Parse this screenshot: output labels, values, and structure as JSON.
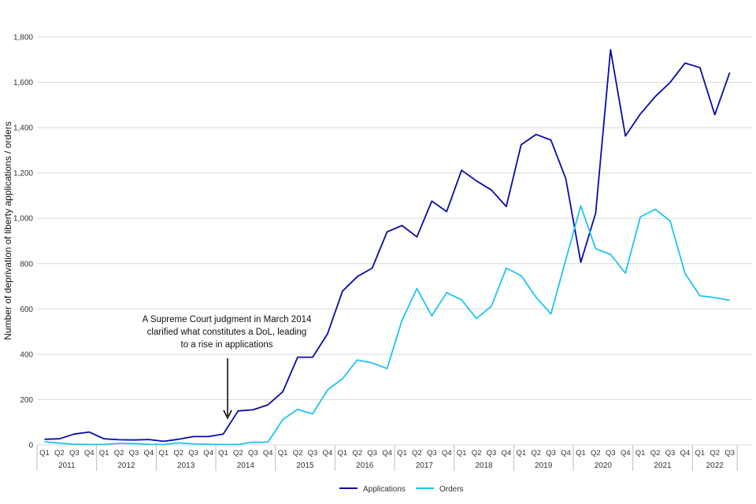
{
  "chart_data": {
    "type": "line",
    "ylabel": "Number of deprivation of liberty applications / orders",
    "ylim": [
      0,
      1800
    ],
    "yticks": [
      "0",
      "200",
      "400",
      "600",
      "800",
      "1,000",
      "1,200",
      "1,400",
      "1,600",
      "1,800"
    ],
    "ytick_values": [
      0,
      200,
      400,
      600,
      800,
      1000,
      1200,
      1400,
      1600,
      1800
    ],
    "quarters": [
      "Q1",
      "Q2",
      "Q3",
      "Q4"
    ],
    "years": [
      {
        "label": "2011",
        "quarters": [
          "Q1",
          "Q2",
          "Q3",
          "Q4"
        ]
      },
      {
        "label": "2012",
        "quarters": [
          "Q1",
          "Q2",
          "Q3",
          "Q4"
        ]
      },
      {
        "label": "2013",
        "quarters": [
          "Q1",
          "Q2",
          "Q3",
          "Q4"
        ]
      },
      {
        "label": "2014",
        "quarters": [
          "Q1",
          "Q2",
          "Q3",
          "Q4"
        ]
      },
      {
        "label": "2015",
        "quarters": [
          "Q1",
          "Q2",
          "Q3",
          "Q4"
        ]
      },
      {
        "label": "2016",
        "quarters": [
          "Q1",
          "Q2",
          "Q3",
          "Q4"
        ]
      },
      {
        "label": "2017",
        "quarters": [
          "Q1",
          "Q2",
          "Q3",
          "Q4"
        ]
      },
      {
        "label": "2018",
        "quarters": [
          "Q1",
          "Q2",
          "Q3",
          "Q4"
        ]
      },
      {
        "label": "2019",
        "quarters": [
          "Q1",
          "Q2",
          "Q3",
          "Q4"
        ]
      },
      {
        "label": "2020",
        "quarters": [
          "Q1",
          "Q2",
          "Q3",
          "Q4"
        ]
      },
      {
        "label": "2021",
        "quarters": [
          "Q1",
          "Q2",
          "Q3",
          "Q4"
        ]
      },
      {
        "label": "2022",
        "quarters": [
          "Q1",
          "Q2",
          "Q3"
        ]
      }
    ],
    "series": [
      {
        "name": "Applications",
        "color": "#0a0aa8",
        "values": [
          25,
          27,
          48,
          57,
          27,
          23,
          22,
          24,
          16,
          25,
          37,
          37,
          48,
          150,
          155,
          177,
          235,
          387,
          387,
          490,
          678,
          743,
          780,
          940,
          968,
          918,
          1076,
          1030,
          1212,
          1165,
          1125,
          1052,
          1325,
          1370,
          1345,
          1175,
          806,
          1023,
          1744,
          1363,
          1460,
          1537,
          1600,
          1685,
          1665,
          1457,
          1643
        ]
      },
      {
        "name": "Orders",
        "color": "#1ec4f0",
        "values": [
          14,
          8,
          3,
          2,
          2,
          7,
          6,
          3,
          2,
          9,
          5,
          3,
          2,
          2,
          12,
          12,
          112,
          157,
          137,
          243,
          292,
          375,
          362,
          337,
          550,
          690,
          570,
          672,
          640,
          558,
          612,
          780,
          747,
          652,
          578,
          818,
          1055,
          866,
          841,
          758,
          1006,
          1040,
          988,
          757,
          658,
          650,
          638
        ]
      }
    ],
    "annotation": {
      "lines": [
        "A Supreme Court judgment in March 2014",
        "clarified what constitutes a DoL, leading",
        "to a rise in applications"
      ],
      "points_to": "2014 Q1"
    },
    "legend_position": "bottom-center",
    "grid": true
  }
}
